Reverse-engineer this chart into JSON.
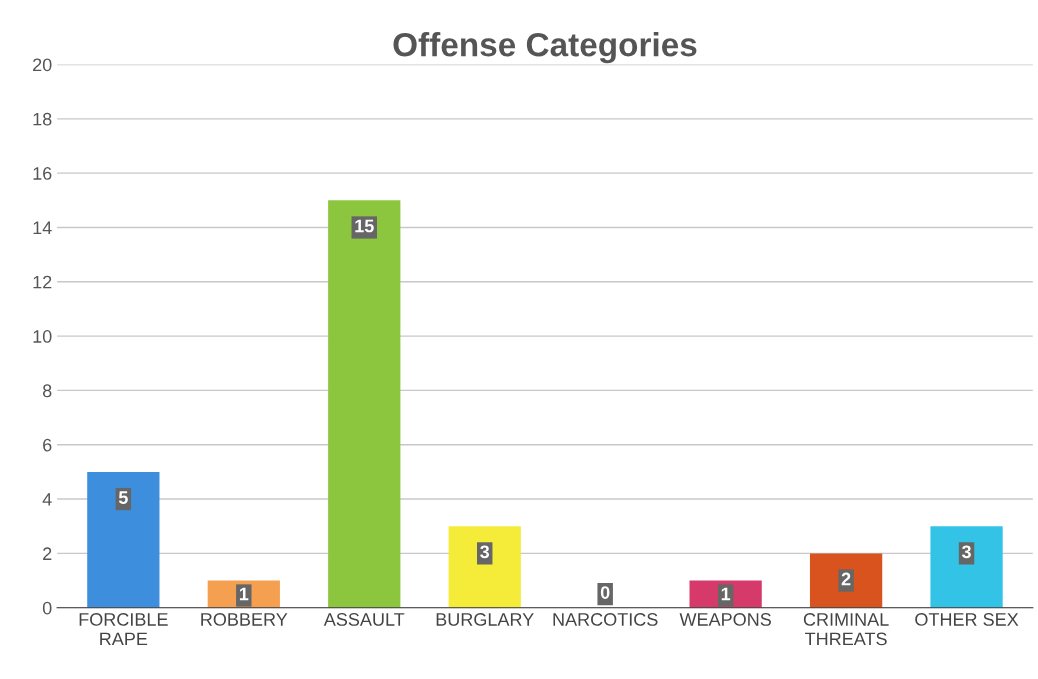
{
  "chart_data": {
    "type": "bar",
    "title": "Offense Categories",
    "categories": [
      "FORCIBLE\nRAPE",
      "ROBBERY",
      "ASSAULT",
      "BURGLARY",
      "NARCOTICS",
      "WEAPONS",
      "CRIMINAL\nTHREATS",
      "OTHER SEX"
    ],
    "values": [
      5,
      1,
      15,
      3,
      0,
      1,
      2,
      3
    ],
    "colors": [
      "#3d8fde",
      "#f5a050",
      "#8cc63f",
      "#f5ec3a",
      "#9e9e9e",
      "#d63a6a",
      "#d9531e",
      "#33c3e6"
    ],
    "ylim": [
      0,
      20
    ],
    "yticks": [
      0,
      2,
      4,
      6,
      8,
      10,
      12,
      14,
      16,
      18,
      20
    ],
    "grid": "y",
    "data_labels": true
  }
}
